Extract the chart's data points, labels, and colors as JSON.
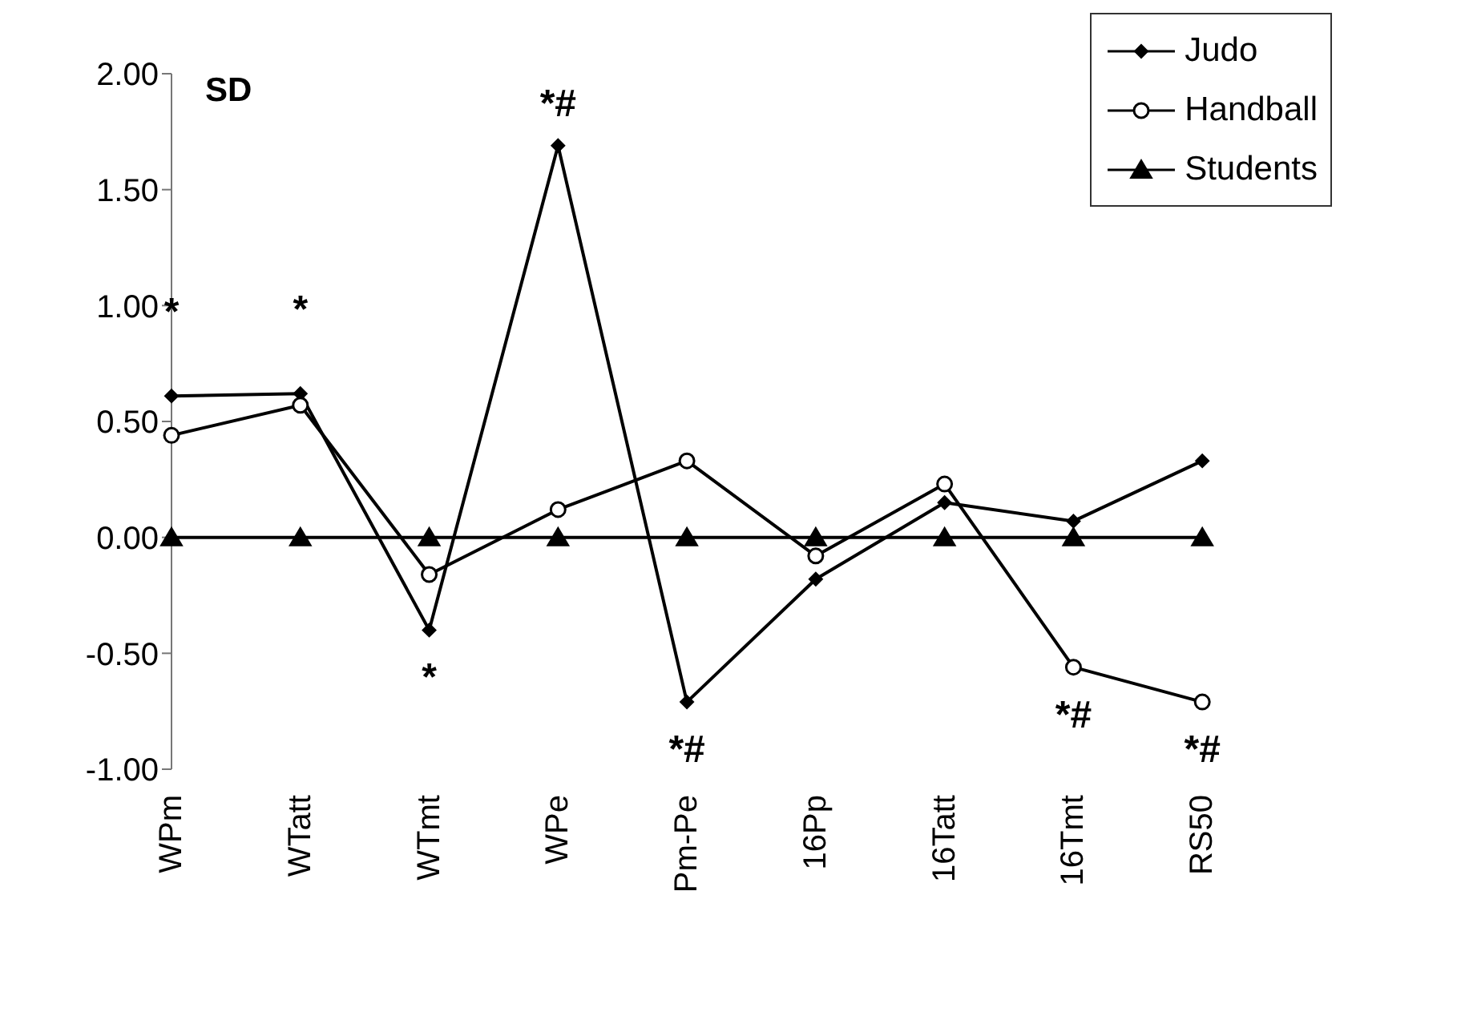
{
  "chart_data": {
    "type": "line",
    "ylabel": "SD",
    "categories": [
      "WPm",
      "WTatt",
      "WTmt",
      "WPe",
      "Pm-Pe",
      "16Pp",
      "16Tatt",
      "16Tmt",
      "RS50"
    ],
    "series": [
      {
        "name": "Judo",
        "color": "#000000",
        "marker": "diamond",
        "values": [
          0.61,
          0.62,
          -0.4,
          1.69,
          -0.71,
          -0.18,
          0.15,
          0.07,
          0.33
        ]
      },
      {
        "name": "Handball",
        "color": "#000000",
        "marker": "circle",
        "values": [
          0.44,
          0.57,
          -0.16,
          0.12,
          0.33,
          -0.08,
          0.23,
          -0.56,
          -0.71
        ]
      },
      {
        "name": "Students",
        "color": "#000000",
        "marker": "triangle",
        "values": [
          0,
          0,
          0,
          0,
          0,
          0,
          0,
          0,
          0
        ]
      }
    ],
    "ylim": [
      -1,
      2
    ],
    "yticks": [
      {
        "value": -1,
        "label": "-1.00"
      },
      {
        "value": -0.5,
        "label": "-0.50"
      },
      {
        "value": 0,
        "label": "0.00"
      },
      {
        "value": 0.5,
        "label": "0.50"
      },
      {
        "value": 1,
        "label": "1.00"
      },
      {
        "value": 1.5,
        "label": "1.50"
      },
      {
        "value": 2,
        "label": "2.00"
      }
    ],
    "annotations": [
      {
        "text": "*",
        "x": "WPm",
        "y": 0.61
      },
      {
        "text": "*",
        "x": "WTatt",
        "y": 0.62
      },
      {
        "text": "*",
        "x": "WTmt",
        "y": -0.4
      },
      {
        "text": "*#",
        "x": "WPe",
        "y": 1.69
      },
      {
        "text": "*#",
        "x": "Pm-Pe",
        "y": -0.71
      },
      {
        "text": "*#",
        "x": "16Tmt",
        "y": -0.56
      },
      {
        "text": "*#",
        "x": "RS50",
        "y": -0.71
      }
    ],
    "grid": false,
    "legend": "top right"
  }
}
